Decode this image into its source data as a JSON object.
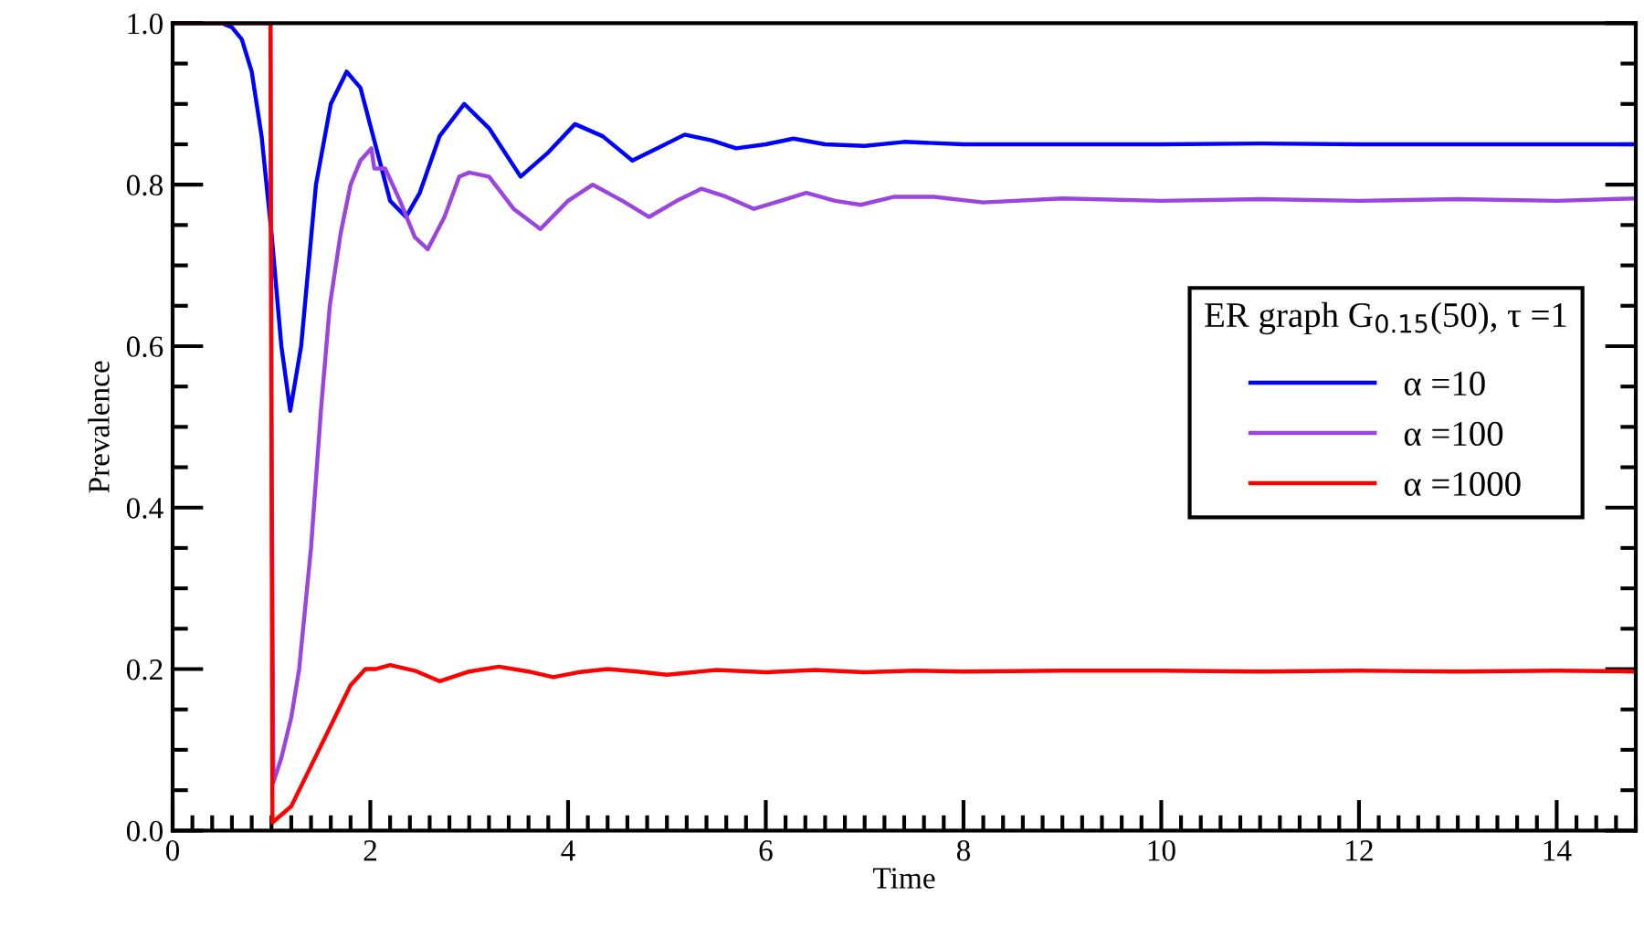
{
  "chart_data": {
    "type": "line",
    "xlabel": "Time",
    "ylabel": "Prevalence",
    "legend_title": "ER graph G$_{0.15}$(50), τ =1",
    "xlim": [
      0,
      14.8
    ],
    "ylim": [
      0,
      1.0
    ],
    "xticks": [
      0,
      2,
      4,
      6,
      8,
      10,
      12,
      14
    ],
    "yticks": [
      {
        "value": 0,
        "label": "0.0"
      },
      {
        "value": 0.2,
        "label": "0.2"
      },
      {
        "value": 0.4,
        "label": "0.4"
      },
      {
        "value": 0.6,
        "label": "0.6"
      },
      {
        "value": 0.8,
        "label": "0.8"
      },
      {
        "value": 1.0,
        "label": "1.0"
      }
    ],
    "grid": false,
    "legend": "right",
    "marker": "none",
    "line_style": "solid",
    "series": [
      {
        "name": "α =10",
        "color": "#0000ff",
        "x": [
          0,
          0.5,
          0.6,
          0.7,
          0.8,
          0.9,
          1.0,
          1.1,
          1.19,
          1.3,
          1.45,
          1.6,
          1.76,
          1.9,
          2.05,
          2.2,
          2.36,
          2.5,
          2.7,
          2.95,
          3.2,
          3.52,
          3.8,
          4.07,
          4.35,
          4.65,
          4.9,
          5.18,
          5.45,
          5.7,
          6.0,
          6.28,
          6.6,
          7.0,
          7.4,
          8.0,
          9.0,
          10.0,
          11.0,
          12.0,
          13.0,
          14.0,
          14.8
        ],
        "values": [
          1.0,
          1.0,
          0.995,
          0.98,
          0.94,
          0.86,
          0.74,
          0.6,
          0.52,
          0.6,
          0.8,
          0.9,
          0.94,
          0.92,
          0.85,
          0.78,
          0.76,
          0.79,
          0.86,
          0.9,
          0.87,
          0.81,
          0.84,
          0.875,
          0.86,
          0.83,
          0.845,
          0.862,
          0.855,
          0.845,
          0.85,
          0.857,
          0.85,
          0.848,
          0.853,
          0.85,
          0.85,
          0.85,
          0.851,
          0.85,
          0.85,
          0.85,
          0.85
        ]
      },
      {
        "name": "α =100",
        "color": "#9b45e0",
        "x": [
          0,
          0.99,
          1.0,
          1.02,
          1.1,
          1.2,
          1.28,
          1.4,
          1.5,
          1.59,
          1.7,
          1.8,
          1.9,
          2.01,
          2.04,
          2.15,
          2.3,
          2.45,
          2.58,
          2.75,
          2.9,
          3.0,
          3.2,
          3.45,
          3.72,
          4.0,
          4.25,
          4.55,
          4.82,
          5.1,
          5.35,
          5.6,
          5.88,
          6.15,
          6.41,
          6.7,
          6.96,
          7.3,
          7.7,
          8.2,
          9.0,
          10.0,
          11.0,
          12.0,
          13.0,
          14.0,
          14.8
        ],
        "values": [
          1.0,
          1.0,
          0.5,
          0.06,
          0.09,
          0.14,
          0.2,
          0.35,
          0.52,
          0.65,
          0.74,
          0.8,
          0.83,
          0.845,
          0.82,
          0.82,
          0.78,
          0.735,
          0.72,
          0.76,
          0.81,
          0.815,
          0.81,
          0.77,
          0.745,
          0.78,
          0.8,
          0.78,
          0.76,
          0.78,
          0.795,
          0.785,
          0.77,
          0.78,
          0.79,
          0.78,
          0.775,
          0.785,
          0.785,
          0.778,
          0.783,
          0.78,
          0.782,
          0.78,
          0.782,
          0.78,
          0.783
        ]
      },
      {
        "name": "α =1000",
        "color": "#ff0000",
        "x": [
          0,
          0.99,
          1.0,
          1.01,
          1.2,
          1.4,
          1.6,
          1.8,
          1.95,
          2.05,
          2.2,
          2.45,
          2.7,
          3.0,
          3.3,
          3.6,
          3.85,
          4.1,
          4.4,
          4.7,
          5.0,
          5.5,
          6.0,
          6.5,
          7.0,
          7.5,
          8.0,
          9.0,
          10.0,
          11.0,
          12.0,
          13.0,
          14.0,
          14.8
        ],
        "values": [
          1.0,
          1.0,
          0.5,
          0.01,
          0.03,
          0.08,
          0.13,
          0.18,
          0.2,
          0.2,
          0.205,
          0.198,
          0.185,
          0.197,
          0.203,
          0.197,
          0.19,
          0.196,
          0.2,
          0.197,
          0.193,
          0.199,
          0.196,
          0.199,
          0.196,
          0.198,
          0.197,
          0.198,
          0.198,
          0.197,
          0.198,
          0.197,
          0.198,
          0.197
        ]
      }
    ]
  }
}
